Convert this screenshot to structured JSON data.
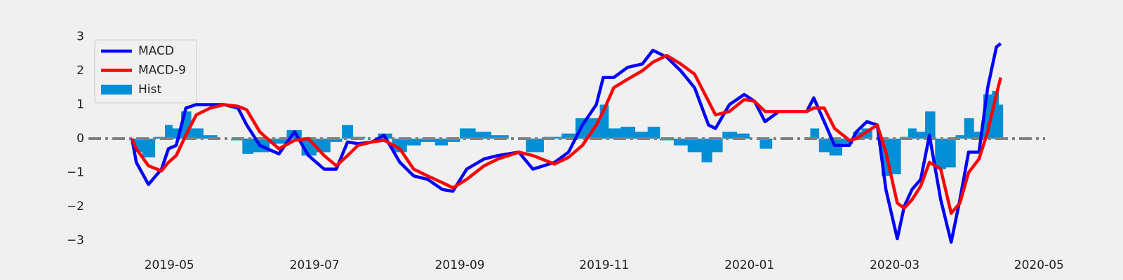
{
  "chart_data": {
    "type": "line",
    "x": [
      2019.29,
      2019.295,
      2019.309,
      2019.324,
      2019.332,
      2019.341,
      2019.352,
      2019.364,
      2019.38,
      2019.396,
      2019.412,
      2019.422,
      2019.437,
      2019.459,
      2019.477,
      2019.493,
      2019.511,
      2019.525,
      2019.538,
      2019.55,
      2019.566,
      2019.58,
      2019.598,
      2019.614,
      2019.63,
      2019.647,
      2019.659,
      2019.675,
      2019.695,
      2019.711,
      2019.735,
      2019.751,
      2019.776,
      2019.792,
      2019.808,
      2019.824,
      2019.832,
      2019.844,
      2019.86,
      2019.877,
      2019.889,
      2019.905,
      2019.921,
      2019.937,
      2019.953,
      2019.961,
      2019.977,
      2019.994,
      2020.006,
      2020.018,
      2020.034,
      2020.05,
      2020.066,
      2020.074,
      2020.086,
      2020.098,
      2020.115,
      2020.123,
      2020.135,
      2020.147,
      2020.157,
      2020.17,
      2020.178,
      2020.187,
      2020.197,
      2020.207,
      2020.22,
      2020.232,
      2020.242,
      2020.252,
      2020.264,
      2020.274,
      2020.284,
      2020.289
    ],
    "series": [
      {
        "name": "MACD",
        "type": "line",
        "color": "#0000ff",
        "values": [
          0,
          -0.7,
          -1.35,
          -0.9,
          -0.3,
          -0.2,
          0.9,
          1.0,
          1.0,
          1.0,
          0.9,
          0.4,
          -0.2,
          -0.45,
          0.2,
          -0.5,
          -0.9,
          -0.9,
          -0.1,
          -0.15,
          -0.1,
          0.1,
          -0.7,
          -1.1,
          -1.2,
          -1.5,
          -1.55,
          -0.9,
          -0.6,
          -0.5,
          -0.4,
          -0.9,
          -0.7,
          -0.4,
          0.4,
          1.0,
          1.8,
          1.8,
          2.1,
          2.2,
          2.6,
          2.4,
          2.0,
          1.5,
          0.4,
          0.3,
          1.0,
          1.3,
          1.1,
          0.5,
          0.8,
          0.8,
          0.8,
          1.2,
          0.5,
          -0.2,
          -0.2,
          0.2,
          0.5,
          0.4,
          -1.5,
          -2.95,
          -2.0,
          -1.5,
          -1.2,
          0.1,
          -1.8,
          -3.05,
          -1.8,
          -0.4,
          -0.4,
          1.5,
          2.7,
          2.8
        ]
      },
      {
        "name": "MACD-9",
        "type": "line",
        "color": "#ff0000",
        "values": [
          0,
          -0.3,
          -0.8,
          -0.95,
          -0.7,
          -0.5,
          0.1,
          0.7,
          0.9,
          1.0,
          0.95,
          0.85,
          0.2,
          -0.3,
          -0.05,
          0,
          -0.5,
          -0.8,
          -0.5,
          -0.2,
          -0.1,
          -0.05,
          -0.3,
          -0.9,
          -1.1,
          -1.3,
          -1.45,
          -1.2,
          -0.8,
          -0.6,
          -0.4,
          -0.5,
          -0.75,
          -0.55,
          -0.2,
          0.4,
          0.8,
          1.5,
          1.75,
          2.0,
          2.25,
          2.45,
          2.2,
          1.9,
          1.1,
          0.7,
          0.8,
          1.15,
          1.1,
          0.8,
          0.8,
          0.8,
          0.8,
          0.9,
          0.9,
          0.3,
          -0.05,
          0,
          0.2,
          0.4,
          -0.4,
          -1.9,
          -2.05,
          -1.8,
          -1.4,
          -0.7,
          -0.9,
          -2.2,
          -1.9,
          -1.0,
          -0.6,
          0.2,
          1.3,
          1.8
        ]
      },
      {
        "name": "Hist",
        "type": "bar",
        "color": "#008fd5",
        "values": [
          0,
          -0.4,
          -0.55,
          0.05,
          0.4,
          0.3,
          0.8,
          0.3,
          0.1,
          0,
          -0.05,
          -0.45,
          -0.4,
          -0.15,
          0.25,
          -0.5,
          -0.4,
          -0.1,
          0.4,
          0.05,
          0,
          0.15,
          -0.4,
          -0.2,
          -0.1,
          -0.2,
          -0.1,
          0.3,
          0.2,
          0.1,
          0,
          -0.4,
          0.05,
          0.15,
          0.6,
          0.6,
          1.0,
          0.3,
          0.35,
          0.2,
          0.35,
          -0.05,
          -0.2,
          -0.4,
          -0.7,
          -0.4,
          0.2,
          0.15,
          0,
          -0.3,
          0,
          0,
          0,
          0.3,
          -0.4,
          -0.5,
          -0.15,
          0.2,
          0.3,
          0,
          -1.1,
          -1.05,
          0.05,
          0.3,
          0.2,
          0.8,
          -0.9,
          -0.85,
          0.1,
          0.6,
          0.2,
          1.3,
          1.4,
          1.0
        ]
      }
    ],
    "xlim": [
      2019.24,
      2020.34
    ],
    "xticks": [
      {
        "value": 2019.333,
        "label": "2019-05"
      },
      {
        "value": 2019.5,
        "label": "2019-07"
      },
      {
        "value": 2019.667,
        "label": "2019-09"
      },
      {
        "value": 2019.833,
        "label": "2019-11"
      },
      {
        "value": 2020.0,
        "label": "2020-01"
      },
      {
        "value": 2020.167,
        "label": "2020-03"
      },
      {
        "value": 2020.333,
        "label": "2020-05"
      }
    ],
    "ylim": [
      -3.3,
      3.3
    ],
    "yticks": [
      {
        "value": -3,
        "label": "−3"
      },
      {
        "value": -2,
        "label": "−2"
      },
      {
        "value": -1,
        "label": "−1"
      },
      0,
      1,
      2,
      3
    ],
    "hline": {
      "y": 0,
      "color": "#808080"
    },
    "grid": false,
    "legend": "upper-left"
  }
}
